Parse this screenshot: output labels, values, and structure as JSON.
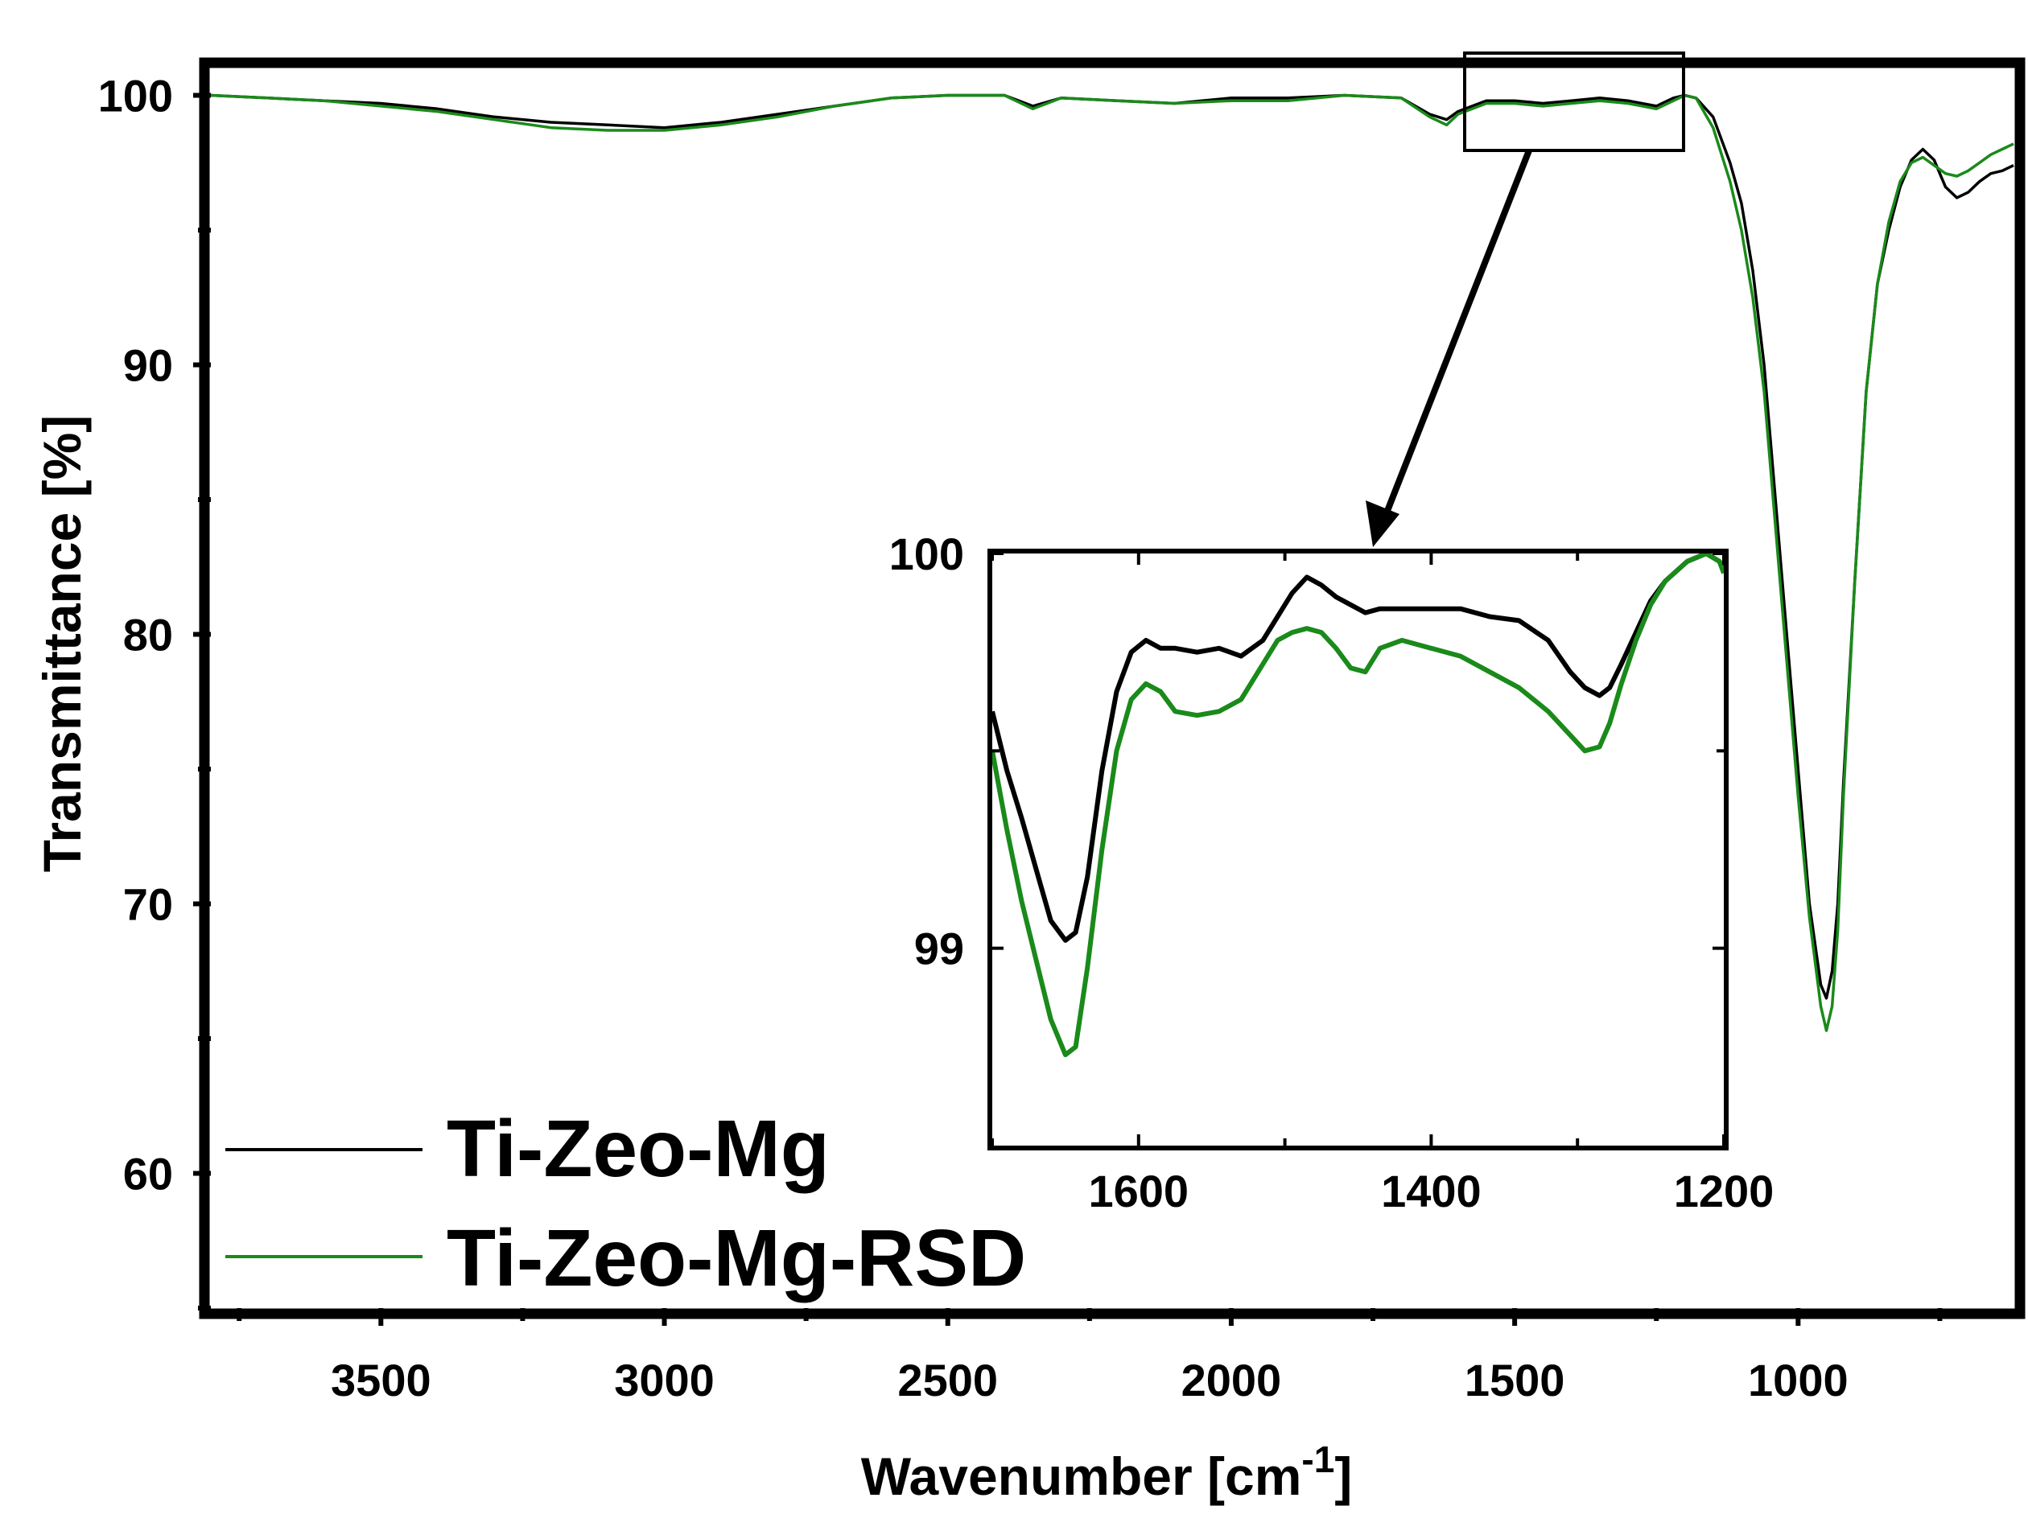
{
  "chart_data": [
    {
      "id": "main",
      "type": "line",
      "title": "",
      "xlabel": "Wavenumber [cm",
      "xlabel_superscript": "-1",
      "xlabel_close": "]",
      "ylabel": "Transmittance [%]",
      "xlim": [
        3800,
        620
      ],
      "ylim": [
        55,
        101
      ],
      "x_reversed": true,
      "xticks": [
        3500,
        3000,
        2500,
        2000,
        1500,
        1000
      ],
      "yticks": [
        60,
        70,
        80,
        90,
        100
      ],
      "legend": {
        "position": "bottom-left",
        "entries": [
          "Ti-Zeo-Mg",
          "Ti-Zeo-Mg-RSD"
        ]
      },
      "series": [
        {
          "name": "Ti-Zeo-Mg",
          "color": "#000000",
          "x": [
            3800,
            3700,
            3600,
            3500,
            3400,
            3300,
            3200,
            3100,
            3000,
            2900,
            2800,
            2700,
            2600,
            2500,
            2400,
            2350,
            2300,
            2200,
            2100,
            2000,
            1900,
            1800,
            1700,
            1650,
            1620,
            1600,
            1550,
            1500,
            1450,
            1400,
            1350,
            1300,
            1250,
            1220,
            1200,
            1180,
            1150,
            1120,
            1100,
            1080,
            1060,
            1040,
            1020,
            1000,
            980,
            960,
            950,
            940,
            930,
            920,
            900,
            880,
            860,
            840,
            820,
            800,
            780,
            760,
            740,
            720,
            700,
            680,
            660,
            640,
            620
          ],
          "y": [
            100,
            99.9,
            99.8,
            99.7,
            99.5,
            99.2,
            99.0,
            98.9,
            98.8,
            99.0,
            99.3,
            99.6,
            99.9,
            100,
            100,
            99.6,
            99.9,
            99.8,
            99.7,
            99.9,
            99.9,
            100,
            99.9,
            99.3,
            99.1,
            99.4,
            99.8,
            99.8,
            99.7,
            99.8,
            99.9,
            99.8,
            99.6,
            99.9,
            100,
            99.9,
            99.2,
            97.5,
            96.0,
            93.5,
            90.0,
            85.0,
            80.0,
            75.0,
            70.0,
            67.0,
            66.5,
            67.5,
            70.0,
            74.5,
            82.0,
            89.0,
            93.0,
            95.0,
            96.6,
            97.6,
            98.0,
            97.6,
            96.6,
            96.2,
            96.4,
            96.8,
            97.1,
            97.2,
            97.4
          ]
        },
        {
          "name": "Ti-Zeo-Mg-RSD",
          "color": "#1a8a1a",
          "x": [
            3800,
            3700,
            3600,
            3500,
            3400,
            3300,
            3200,
            3100,
            3000,
            2900,
            2800,
            2700,
            2600,
            2500,
            2400,
            2350,
            2300,
            2200,
            2100,
            2000,
            1900,
            1800,
            1700,
            1650,
            1620,
            1600,
            1550,
            1500,
            1450,
            1400,
            1350,
            1300,
            1250,
            1220,
            1200,
            1180,
            1150,
            1120,
            1100,
            1080,
            1060,
            1040,
            1020,
            1000,
            980,
            960,
            950,
            940,
            930,
            920,
            900,
            880,
            860,
            840,
            820,
            800,
            780,
            760,
            740,
            720,
            700,
            680,
            660,
            640,
            620
          ],
          "y": [
            100,
            99.9,
            99.8,
            99.6,
            99.4,
            99.1,
            98.8,
            98.7,
            98.7,
            98.9,
            99.2,
            99.6,
            99.9,
            100,
            100,
            99.5,
            99.9,
            99.8,
            99.7,
            99.8,
            99.8,
            100,
            99.9,
            99.2,
            98.9,
            99.3,
            99.7,
            99.7,
            99.6,
            99.7,
            99.8,
            99.7,
            99.5,
            99.8,
            100,
            99.9,
            98.8,
            96.8,
            95.0,
            92.5,
            89.0,
            84.0,
            79.0,
            74.0,
            69.5,
            66.2,
            65.3,
            66.2,
            69.0,
            74.0,
            82.0,
            89.0,
            93.0,
            95.3,
            96.8,
            97.5,
            97.7,
            97.4,
            97.1,
            97.0,
            97.2,
            97.5,
            97.8,
            98.0,
            98.2
          ]
        }
      ]
    },
    {
      "id": "inset",
      "type": "line",
      "title": "",
      "xlabel": "",
      "ylabel": "",
      "xlim": [
        1700,
        1200
      ],
      "ylim": [
        98.5,
        100
      ],
      "x_reversed": true,
      "xticks": [
        1600,
        1400,
        1200
      ],
      "yticks": [
        99,
        100
      ],
      "series": [
        {
          "name": "Ti-Zeo-Mg",
          "color": "#000000",
          "x": [
            1700,
            1690,
            1680,
            1670,
            1660,
            1650,
            1643,
            1635,
            1625,
            1615,
            1605,
            1595,
            1585,
            1575,
            1560,
            1545,
            1530,
            1515,
            1505,
            1495,
            1485,
            1475,
            1465,
            1455,
            1445,
            1435,
            1420,
            1400,
            1380,
            1360,
            1340,
            1320,
            1305,
            1295,
            1285,
            1278,
            1270,
            1260,
            1250,
            1240,
            1225,
            1212,
            1203,
            1200
          ],
          "y": [
            99.6,
            99.45,
            99.33,
            99.2,
            99.07,
            99.02,
            99.04,
            99.18,
            99.45,
            99.65,
            99.75,
            99.78,
            99.76,
            99.76,
            99.75,
            99.76,
            99.74,
            99.78,
            99.84,
            99.9,
            99.94,
            99.92,
            99.89,
            99.87,
            99.85,
            99.86,
            99.86,
            99.86,
            99.86,
            99.84,
            99.83,
            99.78,
            99.7,
            99.66,
            99.64,
            99.66,
            99.72,
            99.8,
            99.88,
            99.93,
            99.98,
            100,
            99.98,
            99.96
          ]
        },
        {
          "name": "Ti-Zeo-Mg-RSD",
          "color": "#1a8a1a",
          "x": [
            1700,
            1690,
            1680,
            1670,
            1660,
            1650,
            1643,
            1635,
            1625,
            1615,
            1605,
            1595,
            1585,
            1575,
            1560,
            1545,
            1530,
            1515,
            1505,
            1495,
            1485,
            1475,
            1465,
            1455,
            1445,
            1435,
            1420,
            1400,
            1380,
            1360,
            1340,
            1320,
            1305,
            1295,
            1285,
            1278,
            1270,
            1260,
            1250,
            1240,
            1225,
            1212,
            1203,
            1200
          ],
          "y": [
            99.5,
            99.3,
            99.12,
            98.97,
            98.82,
            98.73,
            98.75,
            98.95,
            99.25,
            99.5,
            99.63,
            99.67,
            99.65,
            99.6,
            99.59,
            99.6,
            99.63,
            99.72,
            99.78,
            99.8,
            99.81,
            99.8,
            99.76,
            99.71,
            99.7,
            99.76,
            99.78,
            99.76,
            99.74,
            99.7,
            99.66,
            99.6,
            99.54,
            99.5,
            99.51,
            99.57,
            99.67,
            99.78,
            99.87,
            99.93,
            99.98,
            100,
            99.98,
            99.95
          ]
        }
      ]
    }
  ]
}
